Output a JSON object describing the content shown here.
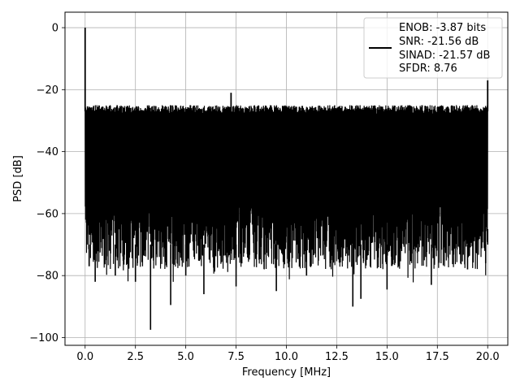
{
  "chart_data": {
    "type": "line",
    "xlabel": "Frequency [MHz]",
    "ylabel": "PSD [dB]",
    "xlim": [
      -1.0,
      21.0
    ],
    "ylim": [
      -102.5,
      5.0
    ],
    "x_ticks": [
      0.0,
      2.5,
      5.0,
      7.5,
      10.0,
      12.5,
      15.0,
      17.5,
      20.0
    ],
    "x_tick_labels": [
      "0.0",
      "2.5",
      "5.0",
      "7.5",
      "10.0",
      "12.5",
      "15.0",
      "17.5",
      "20.0"
    ],
    "y_ticks": [
      0,
      -20,
      -40,
      -60,
      -80,
      -100
    ],
    "y_tick_labels": [
      "0",
      "−20",
      "−40",
      "−60",
      "−80",
      "−100"
    ],
    "grid": true,
    "legend_position": "top-right",
    "line_color": "#000000",
    "series": [
      {
        "legend": [
          "ENOB: -3.87 bits",
          "SNR: -21.56 dB",
          "SINAD: -21.57 dB",
          "SFDR: 8.76"
        ],
        "x_range": [
          0.0,
          20.0
        ],
        "noise_floor_top": -27,
        "noise_floor_bottom": -72,
        "peaks": [
          {
            "x": 0.0,
            "y": 0.0
          },
          {
            "x": 7.25,
            "y": -21.0
          },
          {
            "x": 20.0,
            "y": -17.0
          }
        ],
        "dips": [
          {
            "x": 0.1,
            "y": -64.0
          },
          {
            "x": 0.2,
            "y": -77.0
          },
          {
            "x": 0.5,
            "y": -82.0
          },
          {
            "x": 1.5,
            "y": -80.0
          },
          {
            "x": 2.5,
            "y": -82.0
          },
          {
            "x": 3.25,
            "y": -97.5
          },
          {
            "x": 4.25,
            "y": -89.5
          },
          {
            "x": 5.0,
            "y": -80.0
          },
          {
            "x": 5.9,
            "y": -86.0
          },
          {
            "x": 7.5,
            "y": -83.5
          },
          {
            "x": 9.5,
            "y": -85.0
          },
          {
            "x": 11.0,
            "y": -80.0
          },
          {
            "x": 13.3,
            "y": -90.0
          },
          {
            "x": 13.7,
            "y": -87.5
          },
          {
            "x": 15.0,
            "y": -84.5
          },
          {
            "x": 17.2,
            "y": -83.0
          },
          {
            "x": 19.0,
            "y": -78.0
          },
          {
            "x": 19.9,
            "y": -76.0
          },
          {
            "x": 20.0,
            "y": -65.0
          }
        ]
      }
    ]
  }
}
